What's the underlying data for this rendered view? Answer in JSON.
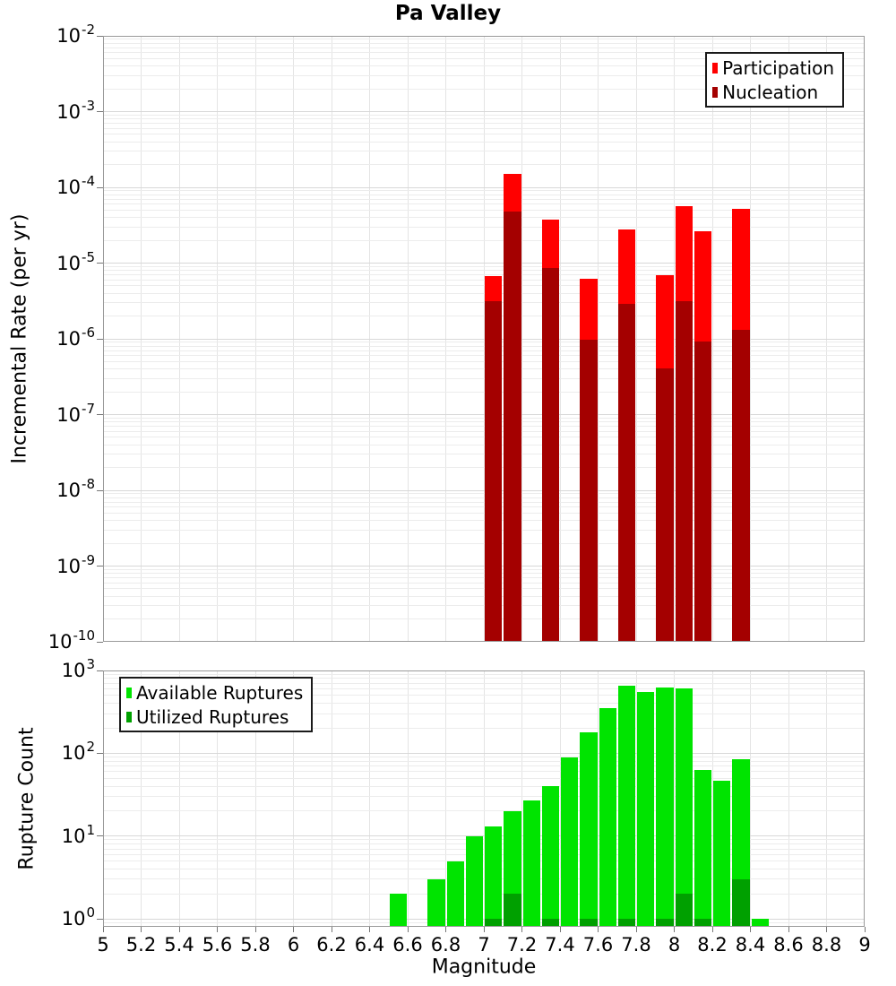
{
  "title": "Pa Valley",
  "xlabel": "Magnitude",
  "x_tick_labels": [
    "5",
    "5.2",
    "5.4",
    "5.6",
    "5.8",
    "6",
    "6.2",
    "6.4",
    "6.6",
    "6.8",
    "7",
    "7.2",
    "7.4",
    "7.6",
    "7.8",
    "8",
    "8.2",
    "8.4",
    "8.6",
    "8.8",
    "9"
  ],
  "colors": {
    "participation": "#ff0000",
    "nucleation": "#a40000",
    "available": "#00e400",
    "utilized": "#00a000",
    "grid_minor": "#ececec",
    "grid_major": "#d8d8d8",
    "grid_vertical": "#e4e4e4",
    "frame": "#9a9a9a",
    "tick": "#777777",
    "text": "#000000"
  },
  "chart_data": [
    {
      "type": "bar",
      "title": "Pa Valley",
      "xlabel": "Magnitude",
      "ylabel": "Incremental Rate (per yr)",
      "xlim": [
        5,
        9
      ],
      "x_tick_step": 0.2,
      "bin_width": 0.1,
      "yscale": "log",
      "ylim": [
        1e-10,
        0.01
      ],
      "ylog_ticks": [
        -2,
        -3,
        -4,
        -5,
        -6,
        -7,
        -8,
        -9,
        -10
      ],
      "grid": true,
      "legend_position": "top-right",
      "series": [
        {
          "name": "Participation",
          "color_key": "participation",
          "x": [
            7.0,
            7.1,
            7.3,
            7.5,
            7.7,
            7.9,
            8.0,
            8.1,
            8.3
          ],
          "values": [
            6.7e-06,
            0.00015,
            3.8e-05,
            6.2e-06,
            2.8e-05,
            6.9e-06,
            5.7e-05,
            2.6e-05,
            5.2e-05
          ]
        },
        {
          "name": "Nucleation",
          "color_key": "nucleation",
          "x": [
            7.0,
            7.1,
            7.3,
            7.5,
            7.7,
            7.9,
            8.0,
            8.1,
            8.3
          ],
          "values": [
            3.1e-06,
            4.8e-05,
            8.7e-06,
            9.7e-07,
            2.9e-06,
            4.1e-07,
            3.1e-06,
            9.3e-07,
            1.3e-06
          ]
        }
      ]
    },
    {
      "type": "bar",
      "title": "",
      "xlabel": "Magnitude",
      "ylabel": "Rupture Count",
      "xlim": [
        5,
        9
      ],
      "x_tick_step": 0.2,
      "bin_width": 0.1,
      "yscale": "log",
      "ylim": [
        0.8,
        1000
      ],
      "ylog_ticks": [
        3,
        2,
        1,
        0
      ],
      "grid": true,
      "legend_position": "top-left",
      "series": [
        {
          "name": "Available Ruptures",
          "color_key": "available",
          "x": [
            6.5,
            6.7,
            6.8,
            6.9,
            7.0,
            7.1,
            7.2,
            7.3,
            7.4,
            7.5,
            7.6,
            7.7,
            7.8,
            7.9,
            8.0,
            8.1,
            8.2,
            8.3,
            8.4
          ],
          "values": [
            2,
            3,
            5,
            10,
            13,
            20,
            27,
            40,
            90,
            178,
            350,
            660,
            555,
            630,
            610,
            63,
            47,
            84,
            1
          ]
        },
        {
          "name": "Utilized Ruptures",
          "color_key": "utilized",
          "x": [
            7.0,
            7.1,
            7.3,
            7.5,
            7.7,
            7.9,
            8.0,
            8.1,
            8.3
          ],
          "values": [
            1,
            2,
            1,
            1,
            1,
            1,
            2,
            1,
            3
          ]
        }
      ]
    }
  ]
}
